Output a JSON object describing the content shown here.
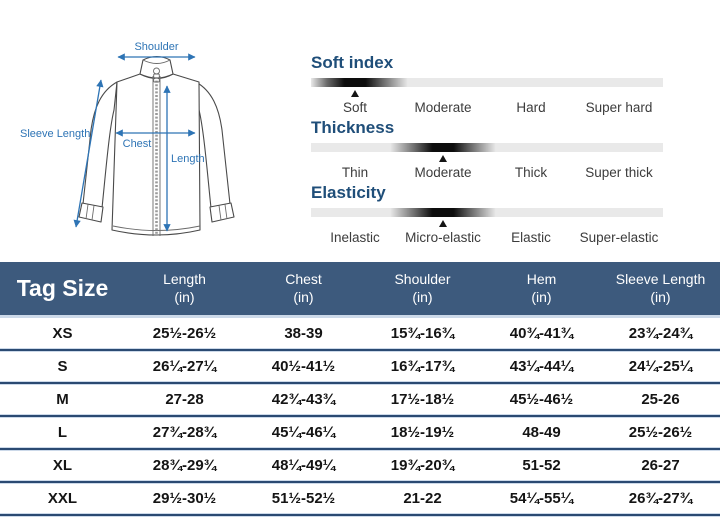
{
  "colors": {
    "header_bg": "#3d5a7d",
    "heading_blue": "#1f4e79",
    "diagram_blue": "#2e74b5",
    "divider_navy": "#2b4a72",
    "pale_line": "#ccd9e9",
    "bar_light": "#e9e9e9"
  },
  "diagram": {
    "shoulder_label": "Shoulder",
    "sleeve_length_label": "Sleeve Length",
    "chest_label": "Chest",
    "length_label": "Length"
  },
  "scales": [
    {
      "title": "Soft index",
      "marker_pct": 12.5,
      "selected": "Soft",
      "labels": [
        "Soft",
        "Moderate",
        "Hard",
        "Super hard"
      ]
    },
    {
      "title": "Thickness",
      "marker_pct": 37.5,
      "selected": "Moderate",
      "labels": [
        "Thin",
        "Moderate",
        "Thick",
        "Super thick"
      ]
    },
    {
      "title": "Elasticity",
      "marker_pct": 37.5,
      "selected": "Micro-elastic",
      "labels": [
        "Inelastic",
        "Micro-elastic",
        "Elastic",
        "Super-elastic"
      ]
    }
  ],
  "size_table": {
    "tag_size_label": "Tag Size",
    "unit": "(in)",
    "columns": [
      "Length",
      "Chest",
      "Shoulder",
      "Hem",
      "Sleeve Length"
    ],
    "rows": [
      {
        "size": "XS",
        "length": "25½-26½",
        "chest": "38-39",
        "shoulder": "15¾-16¾",
        "hem": "40¾-41¾",
        "sleeve": "23¾-24¾"
      },
      {
        "size": "S",
        "length": "26¼-27¼",
        "chest": "40½-41½",
        "shoulder": "16¾-17¾",
        "hem": "43¼-44¼",
        "sleeve": "24¼-25¼"
      },
      {
        "size": "M",
        "length": "27-28",
        "chest": "42¾-43¾",
        "shoulder": "17½-18½",
        "hem": "45½-46½",
        "sleeve": "25-26"
      },
      {
        "size": "L",
        "length": "27¾-28¾",
        "chest": "45¼-46¼",
        "shoulder": "18½-19½",
        "hem": "48-49",
        "sleeve": "25½-26½"
      },
      {
        "size": "XL",
        "length": "28¾-29¾",
        "chest": "48¼-49¼",
        "shoulder": "19¾-20¾",
        "hem": "51-52",
        "sleeve": "26-27"
      },
      {
        "size": "XXL",
        "length": "29½-30½",
        "chest": "51½-52½",
        "shoulder": "21-22",
        "hem": "54¼-55¼",
        "sleeve": "26¾-27¾"
      }
    ]
  }
}
